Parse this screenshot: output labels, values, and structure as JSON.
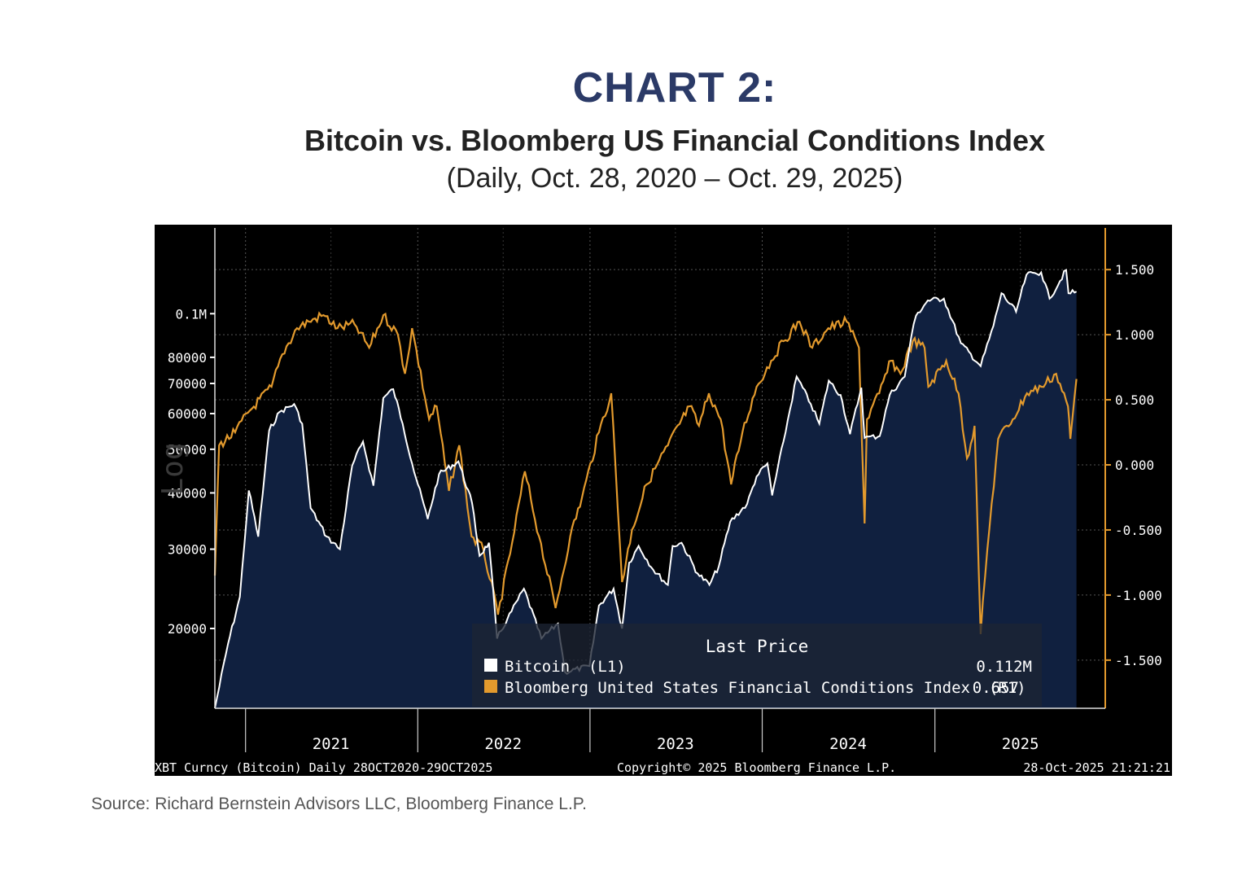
{
  "header": {
    "title": "CHART 2:",
    "subtitle": "Bitcoin vs. Bloomberg US Financial Conditions Index",
    "date_range": "(Daily, Oct. 28, 2020 – Oct. 29, 2025)"
  },
  "source": "Source: Richard Bernstein Advisors LLC, Bloomberg Finance L.P.",
  "colors": {
    "background": "#000000",
    "area_fill": "#10203f",
    "bitcoin": "#ffffff",
    "fci": "#e39a2d",
    "grid": "#7a7a7a"
  },
  "chart_data": {
    "type": "line",
    "left_axis_label": "Log",
    "left_axis_ticks": [
      {
        "value": 100000,
        "label": "0.1M"
      },
      {
        "value": 80000,
        "label": "80000"
      },
      {
        "value": 70000,
        "label": "70000"
      },
      {
        "value": 60000,
        "label": "60000"
      },
      {
        "value": 50000,
        "label": "50000"
      },
      {
        "value": 40000,
        "label": "40000"
      },
      {
        "value": 30000,
        "label": "30000"
      },
      {
        "value": 20000,
        "label": "20000"
      }
    ],
    "left_ylim": [
      13300,
      155000
    ],
    "left_scale": "log",
    "right_axis_ticks": [
      {
        "value": 1.5,
        "label": "1.500"
      },
      {
        "value": 1.0,
        "label": "1.000"
      },
      {
        "value": 0.5,
        "label": "0.500"
      },
      {
        "value": 0.0,
        "label": "0.000"
      },
      {
        "value": -0.5,
        "label": "-0.500"
      },
      {
        "value": -1.0,
        "label": "-1.000"
      },
      {
        "value": -1.5,
        "label": "-1.500"
      }
    ],
    "right_ylim": [
      -1.87,
      1.82
    ],
    "xlim": [
      "2020-10-28",
      "2025-12-28"
    ],
    "x_ticks": [
      "2021",
      "2022",
      "2023",
      "2024",
      "2025"
    ],
    "x_tick_dates": [
      "2021-07-01",
      "2022-07-01",
      "2023-07-01",
      "2024-07-01",
      "2025-07-01"
    ],
    "year_boundaries": [
      "2021-01-01",
      "2022-01-01",
      "2023-01-01",
      "2024-01-01",
      "2025-01-01"
    ],
    "legend": {
      "title": "Last Price",
      "position": "bottom-right",
      "entries": [
        {
          "label": "Bitcoin  (L1)",
          "value": "0.112M"
        },
        {
          "label": "Bloomberg United States Financial Conditions Index  (R1)",
          "value": "0.657"
        }
      ]
    },
    "footer": {
      "left": "XBT Curncy (Bitcoin) Daily 28OCT2020-29OCT2025",
      "center": "Copyright© 2025 Bloomberg Finance L.P.",
      "right": "28-Oct-2025 21:21:21"
    },
    "series": [
      {
        "name": "Bitcoin",
        "axis": "left",
        "points": [
          [
            "2020-10-28",
            13300
          ],
          [
            "2020-11-25",
            18500
          ],
          [
            "2020-12-20",
            23500
          ],
          [
            "2021-01-08",
            40500
          ],
          [
            "2021-01-28",
            32000
          ],
          [
            "2021-02-20",
            55000
          ],
          [
            "2021-03-14",
            60500
          ],
          [
            "2021-04-14",
            63000
          ],
          [
            "2021-05-01",
            57000
          ],
          [
            "2021-05-19",
            37000
          ],
          [
            "2021-06-22",
            32000
          ],
          [
            "2021-07-20",
            30000
          ],
          [
            "2021-08-15",
            46000
          ],
          [
            "2021-09-07",
            52000
          ],
          [
            "2021-09-29",
            41500
          ],
          [
            "2021-10-20",
            65000
          ],
          [
            "2021-11-10",
            68000
          ],
          [
            "2021-11-30",
            57000
          ],
          [
            "2021-12-20",
            46500
          ],
          [
            "2022-01-22",
            35000
          ],
          [
            "2022-02-15",
            44000
          ],
          [
            "2022-03-28",
            47000
          ],
          [
            "2022-04-26",
            38000
          ],
          [
            "2022-05-12",
            29000
          ],
          [
            "2022-06-01",
            31000
          ],
          [
            "2022-06-18",
            19000
          ],
          [
            "2022-07-10",
            21000
          ],
          [
            "2022-08-14",
            24500
          ],
          [
            "2022-09-20",
            19000
          ],
          [
            "2022-10-25",
            20500
          ],
          [
            "2022-11-09",
            16000
          ],
          [
            "2022-12-31",
            16500
          ],
          [
            "2023-01-20",
            22500
          ],
          [
            "2023-02-20",
            24500
          ],
          [
            "2023-03-10",
            20000
          ],
          [
            "2023-03-25",
            28000
          ],
          [
            "2023-04-14",
            30500
          ],
          [
            "2023-05-15",
            27000
          ],
          [
            "2023-06-15",
            25000
          ],
          [
            "2023-06-25",
            30500
          ],
          [
            "2023-07-14",
            31000
          ],
          [
            "2023-08-17",
            26500
          ],
          [
            "2023-09-11",
            25000
          ],
          [
            "2023-10-01",
            27500
          ],
          [
            "2023-10-25",
            34500
          ],
          [
            "2023-11-30",
            37800
          ],
          [
            "2023-12-20",
            43500
          ],
          [
            "2024-01-12",
            46500
          ],
          [
            "2024-01-22",
            39500
          ],
          [
            "2024-02-15",
            52000
          ],
          [
            "2024-03-14",
            72500
          ],
          [
            "2024-04-13",
            63000
          ],
          [
            "2024-05-01",
            57000
          ],
          [
            "2024-05-21",
            71000
          ],
          [
            "2024-06-15",
            66000
          ],
          [
            "2024-07-05",
            54000
          ],
          [
            "2024-07-29",
            68500
          ],
          [
            "2024-08-05",
            53000
          ],
          [
            "2024-09-06",
            53500
          ],
          [
            "2024-09-27",
            66000
          ],
          [
            "2024-10-29",
            72500
          ],
          [
            "2024-11-12",
            89000
          ],
          [
            "2024-11-22",
            99000
          ],
          [
            "2024-12-17",
            107000
          ],
          [
            "2025-01-20",
            108000
          ],
          [
            "2025-02-25",
            86000
          ],
          [
            "2025-04-08",
            76500
          ],
          [
            "2025-05-05",
            94000
          ],
          [
            "2025-05-22",
            111000
          ],
          [
            "2025-06-22",
            101000
          ],
          [
            "2025-07-14",
            122000
          ],
          [
            "2025-08-14",
            123500
          ],
          [
            "2025-09-01",
            108000
          ],
          [
            "2025-10-06",
            125000
          ],
          [
            "2025-10-11",
            111000
          ],
          [
            "2025-10-28",
            112000
          ]
        ]
      },
      {
        "name": "Bloomberg United States Financial Conditions Index",
        "axis": "right",
        "points": [
          [
            "2020-10-28",
            -0.85
          ],
          [
            "2020-11-06",
            0.15
          ],
          [
            "2020-12-10",
            0.25
          ],
          [
            "2021-01-06",
            0.4
          ],
          [
            "2021-02-25",
            0.6
          ],
          [
            "2021-03-20",
            0.85
          ],
          [
            "2021-04-20",
            1.05
          ],
          [
            "2021-05-15",
            1.1
          ],
          [
            "2021-06-15",
            1.15
          ],
          [
            "2021-07-15",
            1.05
          ],
          [
            "2021-08-20",
            1.08
          ],
          [
            "2021-09-20",
            0.9
          ],
          [
            "2021-10-20",
            1.15
          ],
          [
            "2021-11-20",
            1.0
          ],
          [
            "2021-12-05",
            0.7
          ],
          [
            "2021-12-20",
            1.05
          ],
          [
            "2022-01-25",
            0.35
          ],
          [
            "2022-02-10",
            0.45
          ],
          [
            "2022-03-08",
            -0.2
          ],
          [
            "2022-03-30",
            0.15
          ],
          [
            "2022-04-25",
            -0.55
          ],
          [
            "2022-05-20",
            -0.65
          ],
          [
            "2022-06-20",
            -1.15
          ],
          [
            "2022-07-20",
            -0.6
          ],
          [
            "2022-08-16",
            -0.05
          ],
          [
            "2022-09-15",
            -0.55
          ],
          [
            "2022-10-20",
            -1.1
          ],
          [
            "2022-11-20",
            -0.55
          ],
          [
            "2022-12-15",
            -0.25
          ],
          [
            "2023-01-20",
            0.25
          ],
          [
            "2023-02-15",
            0.55
          ],
          [
            "2023-03-10",
            -0.9
          ],
          [
            "2023-03-31",
            -0.5
          ],
          [
            "2023-05-01",
            -0.15
          ],
          [
            "2023-06-15",
            0.15
          ],
          [
            "2023-07-31",
            0.45
          ],
          [
            "2023-08-20",
            0.3
          ],
          [
            "2023-09-10",
            0.55
          ],
          [
            "2023-10-05",
            0.35
          ],
          [
            "2023-10-27",
            -0.15
          ],
          [
            "2023-11-20",
            0.25
          ],
          [
            "2023-12-20",
            0.6
          ],
          [
            "2024-01-20",
            0.8
          ],
          [
            "2024-02-15",
            0.95
          ],
          [
            "2024-03-20",
            1.1
          ],
          [
            "2024-04-16",
            0.9
          ],
          [
            "2024-05-20",
            1.05
          ],
          [
            "2024-06-28",
            1.1
          ],
          [
            "2024-07-24",
            0.9
          ],
          [
            "2024-08-05",
            -0.45
          ],
          [
            "2024-08-10",
            0.35
          ],
          [
            "2024-09-05",
            0.55
          ],
          [
            "2024-09-30",
            0.8
          ],
          [
            "2024-10-20",
            0.7
          ],
          [
            "2024-11-15",
            0.95
          ],
          [
            "2024-12-10",
            0.9
          ],
          [
            "2024-12-18",
            0.6
          ],
          [
            "2025-01-25",
            0.8
          ],
          [
            "2025-02-20",
            0.55
          ],
          [
            "2025-03-10",
            0.05
          ],
          [
            "2025-03-26",
            0.3
          ],
          [
            "2025-04-08",
            -1.3
          ],
          [
            "2025-04-22",
            -0.65
          ],
          [
            "2025-05-15",
            0.2
          ],
          [
            "2025-06-15",
            0.35
          ],
          [
            "2025-07-15",
            0.55
          ],
          [
            "2025-08-15",
            0.6
          ],
          [
            "2025-09-15",
            0.7
          ],
          [
            "2025-10-10",
            0.45
          ],
          [
            "2025-10-15",
            0.2
          ],
          [
            "2025-10-28",
            0.66
          ]
        ]
      }
    ]
  }
}
